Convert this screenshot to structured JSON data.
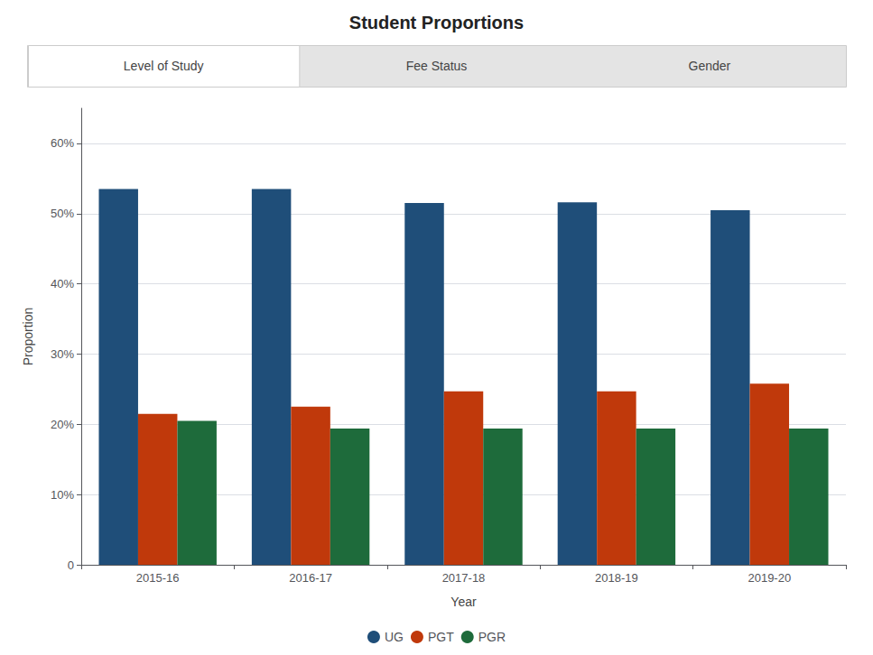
{
  "chart_data": {
    "type": "bar",
    "title": "Student Proportions",
    "xlabel": "Year",
    "ylabel": "Proportion",
    "annotations": [
      "Level of Study",
      "Fee Status",
      "Gender"
    ],
    "categories": [
      "2015-16",
      "2016-17",
      "2017-18",
      "2018-19",
      "2019-20"
    ],
    "series": [
      {
        "name": "UG",
        "color": "#1f4e79",
        "values": [
          0.535,
          0.535,
          0.515,
          0.516,
          0.505
        ]
      },
      {
        "name": "PGT",
        "color": "#c0390b",
        "values": [
          0.215,
          0.225,
          0.247,
          0.247,
          0.258
        ]
      },
      {
        "name": "PGR",
        "color": "#1e6b3b",
        "values": [
          0.205,
          0.194,
          0.194,
          0.194,
          0.194
        ]
      }
    ],
    "ylim": [
      0,
      0.65
    ],
    "yticks": [
      0,
      {
        "value": 0.1,
        "label": "10%"
      },
      {
        "value": 0.2,
        "label": "20%"
      },
      {
        "value": 0.3,
        "label": "30%"
      },
      {
        "value": 0.4,
        "label": "40%"
      },
      {
        "value": 0.5,
        "label": "50%"
      },
      {
        "value": 0.6,
        "label": "60%"
      }
    ],
    "grid": true,
    "legend": "bottom"
  }
}
